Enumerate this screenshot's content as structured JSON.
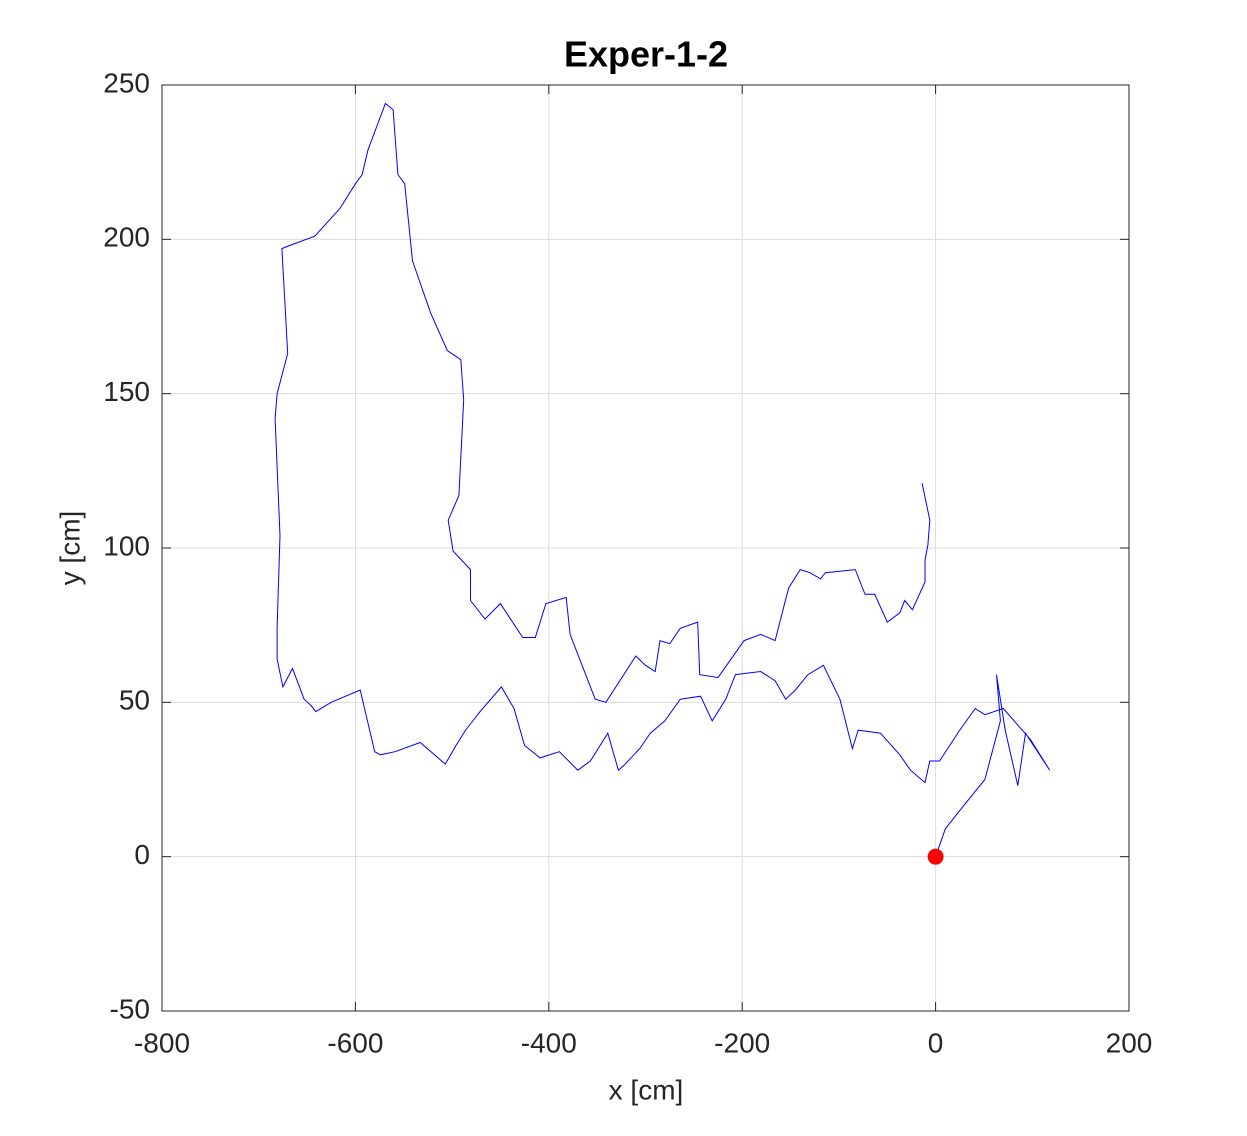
{
  "chart_data": {
    "type": "line",
    "title": "Exper-1-2",
    "x_label": "x [cm]",
    "y_label": "y [cm]",
    "xlim": [
      -800,
      200
    ],
    "xticks": [
      -800,
      -600,
      -400,
      -200,
      0,
      200
    ],
    "ylim": [
      -50,
      250
    ],
    "yticks": [
      -50,
      0,
      50,
      100,
      150,
      200,
      250
    ],
    "grid": true,
    "series": [
      {
        "color": "#0000ff",
        "x": [
          0,
          10,
          25,
          51,
          67,
          63,
          72,
          85,
          93,
          118,
          98,
          70,
          51,
          41,
          25,
          4,
          -6,
          -11,
          -26,
          -37,
          -57,
          -80,
          -86,
          -99,
          -116,
          -132,
          -145,
          -155,
          -166,
          -181,
          -207,
          -217,
          -231,
          -243,
          -264,
          -280,
          -295,
          -306,
          -321,
          -328,
          -339,
          -357,
          -370,
          -389,
          -409,
          -425,
          -436,
          -449,
          -471,
          -486,
          -496,
          -507,
          -533,
          -559,
          -574,
          -580,
          -595,
          -610,
          -625,
          -641,
          -646,
          -653,
          -665,
          -675,
          -681,
          -681,
          -678,
          -683,
          -681,
          -670,
          -676,
          -668,
          -642,
          -616,
          -600,
          -593,
          -587,
          -569,
          -561,
          -556,
          -549,
          -541,
          -522,
          -505,
          -491,
          -488,
          -493,
          -504,
          -499,
          -481,
          -481,
          -466,
          -450,
          -427,
          -414,
          -403,
          -382,
          -378,
          -352,
          -341,
          -310,
          -300,
          -290,
          -285,
          -275,
          -264,
          -246,
          -244,
          -225,
          -198,
          -181,
          -166,
          -152,
          -140,
          -130,
          -119,
          -114,
          -83,
          -73,
          -63,
          -50,
          -37,
          -32,
          -24,
          -11,
          -11,
          -8,
          -6,
          -14
        ],
        "y": [
          0,
          9,
          15,
          25,
          44,
          59,
          41,
          23,
          40,
          28,
          38,
          48,
          46,
          48,
          41,
          31,
          31,
          24,
          28,
          33,
          40,
          41,
          35,
          51,
          62,
          59,
          54,
          51,
          57,
          60,
          59,
          51,
          44,
          52,
          51,
          44,
          40,
          35,
          30,
          28,
          40,
          31,
          28,
          34,
          32,
          36,
          48,
          55,
          47,
          41,
          36,
          30,
          37,
          34,
          33,
          34,
          54,
          52,
          50,
          47,
          49,
          51,
          61,
          55,
          64,
          74,
          104,
          142,
          150,
          163,
          197,
          198,
          201,
          210,
          218,
          221,
          229,
          244,
          242,
          221,
          218,
          193,
          176,
          164,
          161,
          148,
          117,
          109,
          99,
          93,
          83,
          77,
          82,
          71,
          71,
          82,
          84,
          72,
          51,
          50,
          65,
          62,
          60,
          70,
          69,
          74,
          76,
          59,
          58,
          70,
          72,
          70,
          87,
          93,
          92,
          90,
          92,
          93,
          85,
          85,
          76,
          79,
          83,
          80,
          89,
          96,
          101,
          109,
          121
        ]
      },
      {
        "color": "#ff0000",
        "marker": "o",
        "x": [
          0
        ],
        "y": [
          0
        ]
      }
    ]
  }
}
